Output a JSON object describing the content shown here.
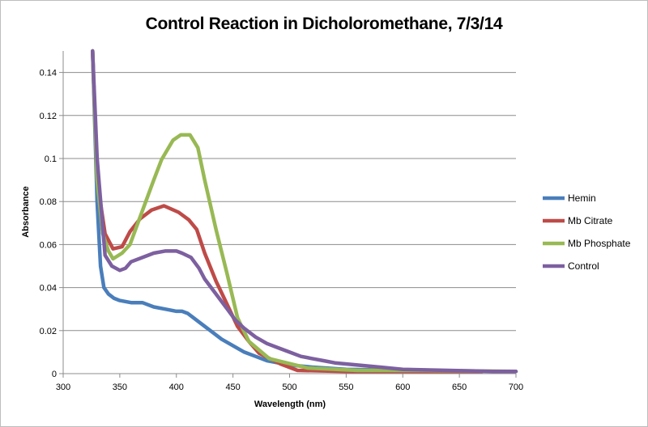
{
  "chart_data": {
    "type": "line",
    "title": "Control Reaction in Dicholoromethane, 7/3/14",
    "xlabel": "Wavelength (nm)",
    "ylabel": "Absorbance",
    "xlim": [
      300,
      700
    ],
    "ylim": [
      0,
      0.15
    ],
    "xticks": [
      300,
      350,
      400,
      450,
      500,
      550,
      600,
      650,
      700
    ],
    "yticks": [
      0,
      0.02,
      0.04,
      0.06,
      0.08,
      0.1,
      0.12,
      0.14
    ],
    "ytick_labels": [
      "0",
      "0.02",
      "0.04",
      "0.06",
      "0.08",
      "0.1",
      "0.12",
      "0.14"
    ],
    "grid": "horizontal",
    "legend_position": "right",
    "series": [
      {
        "name": "Hemin",
        "color": "#4a7ebb",
        "x": [
          326,
          330,
          333,
          336,
          340,
          345,
          350,
          360,
          370,
          380,
          390,
          400,
          405,
          410,
          415,
          420,
          430,
          440,
          450,
          460,
          470,
          480,
          490,
          500,
          520,
          550,
          600,
          620
        ],
        "y": [
          0.15,
          0.08,
          0.05,
          0.04,
          0.037,
          0.035,
          0.034,
          0.033,
          0.033,
          0.031,
          0.03,
          0.029,
          0.029,
          0.028,
          0.026,
          0.024,
          0.02,
          0.016,
          0.013,
          0.01,
          0.008,
          0.006,
          0.005,
          0.004,
          0.003,
          0.002,
          0.0015,
          0.001
        ]
      },
      {
        "name": "Mb Citrate",
        "color": "#be4b48",
        "x": [
          326,
          330,
          337,
          344,
          352,
          359,
          368,
          378,
          389,
          402,
          411,
          418,
          425,
          435,
          445,
          454,
          464,
          473,
          492,
          507,
          550,
          600,
          670
        ],
        "y": [
          0.15,
          0.09,
          0.065,
          0.058,
          0.059,
          0.066,
          0.072,
          0.076,
          0.078,
          0.075,
          0.0715,
          0.067,
          0.056,
          0.043,
          0.032,
          0.022,
          0.015,
          0.0095,
          0.0045,
          0.0015,
          0.001,
          0.001,
          0.001
        ]
      },
      {
        "name": "Mb Phosphate",
        "color": "#98b954",
        "x": [
          326,
          330,
          335,
          340,
          344,
          352,
          359,
          366,
          373,
          380,
          387,
          397,
          404,
          412,
          419,
          425,
          435,
          445,
          454,
          464,
          482,
          516,
          560,
          620,
          700
        ],
        "y": [
          0.15,
          0.09,
          0.065,
          0.057,
          0.0534,
          0.056,
          0.06,
          0.07,
          0.08,
          0.09,
          0.0996,
          0.1085,
          0.111,
          0.111,
          0.105,
          0.09,
          0.067,
          0.046,
          0.026,
          0.015,
          0.007,
          0.0026,
          0.0015,
          0.0015,
          0.001
        ]
      },
      {
        "name": "Control",
        "color": "#7d60a0",
        "x": [
          326,
          330,
          337,
          343,
          350,
          355,
          360,
          370,
          380,
          390,
          400,
          405,
          413,
          420,
          425,
          435,
          445,
          452,
          460,
          470,
          480,
          490,
          500,
          510,
          520,
          530,
          540,
          560,
          580,
          600,
          640,
          680,
          700
        ],
        "y": [
          0.15,
          0.1,
          0.055,
          0.05,
          0.048,
          0.049,
          0.052,
          0.054,
          0.056,
          0.057,
          0.057,
          0.056,
          0.054,
          0.049,
          0.044,
          0.037,
          0.03,
          0.025,
          0.021,
          0.017,
          0.014,
          0.012,
          0.01,
          0.008,
          0.007,
          0.006,
          0.005,
          0.004,
          0.003,
          0.002,
          0.0015,
          0.001,
          0.001
        ]
      }
    ]
  }
}
